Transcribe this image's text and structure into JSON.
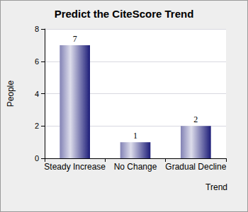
{
  "chart_data": {
    "type": "bar",
    "title": "Predict the CiteScore Trend",
    "x_label": "Trend",
    "y_label": "People",
    "categories": [
      "Steady Increase",
      "No Change",
      "Gradual Decline"
    ],
    "values": [
      7,
      1,
      2
    ],
    "color": "#1c1c78",
    "ylim": [
      0,
      8
    ],
    "yticks": [
      0,
      2,
      4,
      6,
      8
    ],
    "grid": true,
    "data_labels": true
  }
}
